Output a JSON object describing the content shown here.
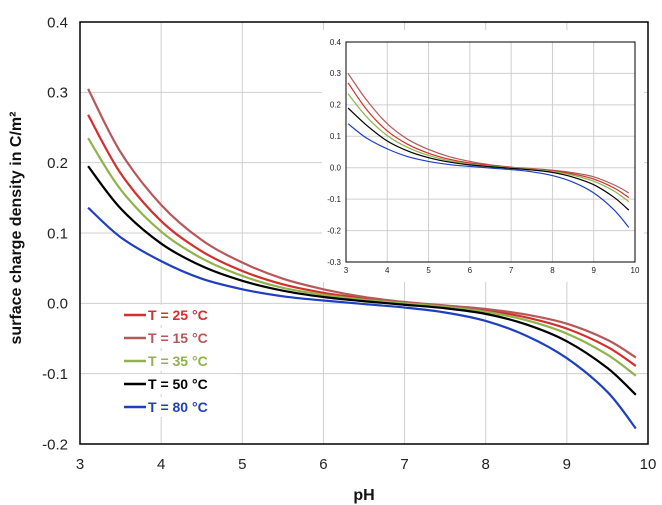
{
  "chart_data": [
    {
      "type": "line",
      "xlabel": "pH",
      "ylabel": "surface charge density in C/m²",
      "xlim": [
        3,
        10
      ],
      "ylim": [
        -0.2,
        0.4
      ],
      "xticks": [
        "3",
        "4",
        "5",
        "6",
        "7",
        "8",
        "9",
        "10"
      ],
      "yticks": [
        "-0.2",
        "-0.1",
        "0.0",
        "0.1",
        "0.2",
        "0.3",
        "0.4"
      ],
      "grid": true,
      "legend_position": "bottom-left",
      "x": [
        3.1,
        3.5,
        4,
        4.5,
        5,
        5.5,
        6,
        6.5,
        7,
        7.5,
        8,
        8.5,
        9,
        9.5,
        9.85
      ],
      "series": [
        {
          "name": "T = 25 °C",
          "color": "#d32f2f",
          "values": [
            0.268,
            0.185,
            0.117,
            0.074,
            0.046,
            0.027,
            0.015,
            0.007,
            0.001,
            -0.004,
            -0.01,
            -0.02,
            -0.036,
            -0.062,
            -0.089
          ]
        },
        {
          "name": "T = 15 °C",
          "color": "#b5585a",
          "values": [
            0.305,
            0.215,
            0.14,
            0.09,
            0.058,
            0.035,
            0.02,
            0.009,
            0.002,
            -0.003,
            -0.008,
            -0.016,
            -0.029,
            -0.052,
            -0.077
          ]
        },
        {
          "name": "T = 35 °C",
          "color": "#8fb34a",
          "values": [
            0.235,
            0.162,
            0.102,
            0.064,
            0.039,
            0.022,
            0.012,
            0.005,
            0.0,
            -0.005,
            -0.012,
            -0.024,
            -0.043,
            -0.073,
            -0.103
          ]
        },
        {
          "name": "T = 50 °C",
          "color": "#000000",
          "values": [
            0.195,
            0.135,
            0.085,
            0.053,
            0.032,
            0.018,
            0.009,
            0.003,
            -0.002,
            -0.007,
            -0.015,
            -0.03,
            -0.054,
            -0.092,
            -0.13
          ]
        },
        {
          "name": "T = 80 °C",
          "color": "#1f3fbf",
          "values": [
            0.136,
            0.094,
            0.06,
            0.035,
            0.02,
            0.01,
            0.004,
            -0.001,
            -0.006,
            -0.013,
            -0.025,
            -0.046,
            -0.078,
            -0.126,
            -0.178
          ]
        }
      ]
    },
    {
      "type": "line",
      "xlim": [
        3,
        10
      ],
      "ylim": [
        -0.3,
        0.4
      ],
      "xticks": [
        "3",
        "4",
        "5",
        "6",
        "7",
        "8",
        "9",
        "10"
      ],
      "yticks": [
        "-0.3",
        "-0.2",
        "-0.1",
        "0.0",
        "0.1",
        "0.2",
        "0.3",
        "0.4"
      ],
      "grid": true,
      "x": [
        3.05,
        3.5,
        4,
        4.5,
        5,
        5.5,
        6,
        6.5,
        7,
        7.5,
        8,
        8.5,
        9,
        9.5,
        9.85
      ],
      "series": [
        {
          "color": "#b5585a",
          "values": [
            0.3,
            0.215,
            0.14,
            0.09,
            0.058,
            0.035,
            0.02,
            0.009,
            0.002,
            -0.003,
            -0.008,
            -0.016,
            -0.029,
            -0.055,
            -0.08
          ]
        },
        {
          "color": "#d32f2f",
          "values": [
            0.27,
            0.185,
            0.117,
            0.074,
            0.046,
            0.027,
            0.015,
            0.007,
            0.001,
            -0.004,
            -0.01,
            -0.02,
            -0.036,
            -0.065,
            -0.095
          ]
        },
        {
          "color": "#8fb34a",
          "values": [
            0.235,
            0.162,
            0.102,
            0.064,
            0.039,
            0.022,
            0.012,
            0.005,
            0.0,
            -0.005,
            -0.012,
            -0.024,
            -0.043,
            -0.075,
            -0.108
          ]
        },
        {
          "color": "#000000",
          "values": [
            0.19,
            0.135,
            0.085,
            0.053,
            0.032,
            0.018,
            0.009,
            0.003,
            -0.002,
            -0.007,
            -0.015,
            -0.03,
            -0.054,
            -0.095,
            -0.135
          ]
        },
        {
          "color": "#1f3fbf",
          "values": [
            0.14,
            0.094,
            0.06,
            0.035,
            0.02,
            0.01,
            0.004,
            -0.001,
            -0.006,
            -0.013,
            -0.025,
            -0.046,
            -0.08,
            -0.135,
            -0.19
          ]
        }
      ]
    }
  ]
}
